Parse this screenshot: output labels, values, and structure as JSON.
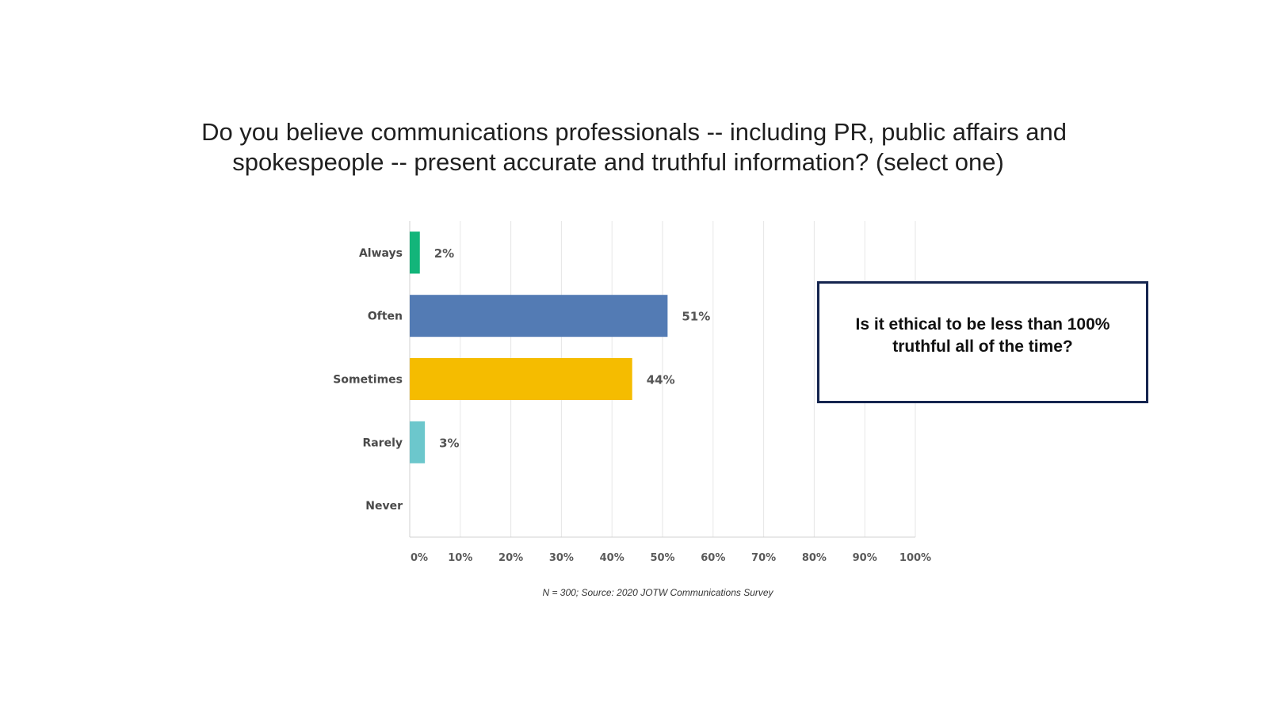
{
  "slide": {
    "title_line1": "Do you believe communications professionals -- including PR, public affairs and",
    "title_line2": "spokespeople -- present accurate and truthful information? (select one)",
    "source_note": "N = 300; Source: 2020 JOTW Communications Survey",
    "callout_text": "Is it ethical to be less than 100% truthful all of  the time?"
  },
  "chart_data": {
    "type": "bar",
    "orientation": "horizontal",
    "categories": [
      "Always",
      "Often",
      "Sometimes",
      "Rarely",
      "Never"
    ],
    "values": [
      2,
      51,
      44,
      3,
      0
    ],
    "value_labels": [
      "2%",
      "51%",
      "44%",
      "3%",
      ""
    ],
    "colors": [
      "#13b57a",
      "#537bb4",
      "#f5bc00",
      "#6cc7cc",
      "#cccccc"
    ],
    "x_ticks": [
      "0%",
      "10%",
      "20%",
      "30%",
      "40%",
      "50%",
      "60%",
      "70%",
      "80%",
      "90%",
      "100%"
    ],
    "xlim": [
      0,
      100
    ],
    "grid": true,
    "legend": "none"
  }
}
